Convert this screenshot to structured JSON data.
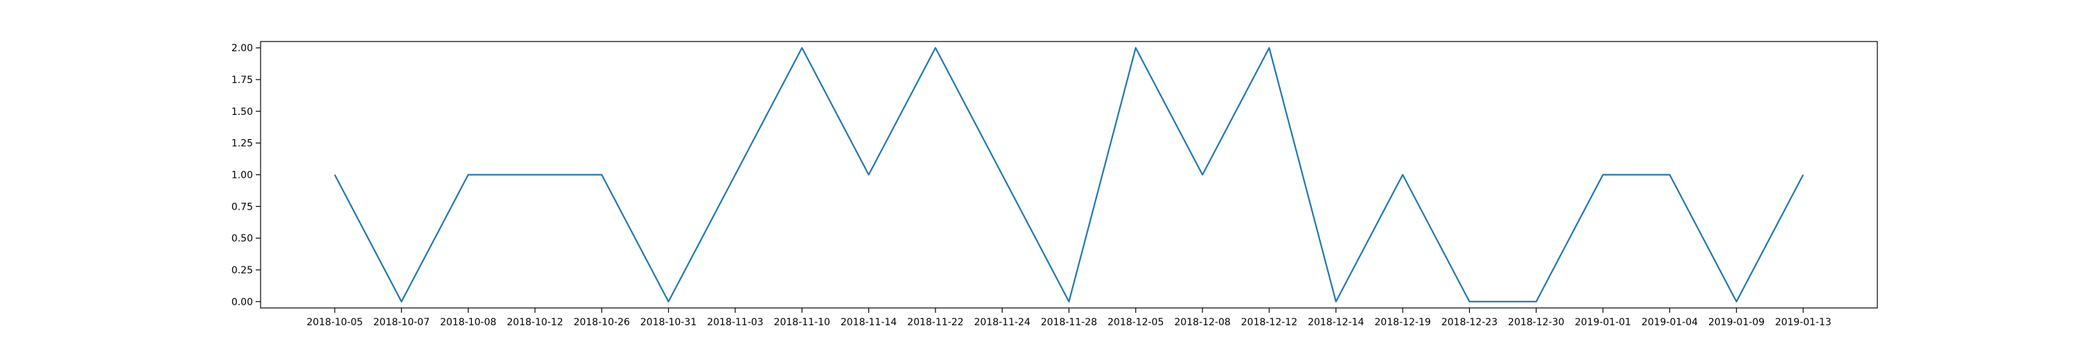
{
  "chart_data": {
    "type": "line",
    "categories": [
      "2018-10-05",
      "2018-10-07",
      "2018-10-08",
      "2018-10-12",
      "2018-10-26",
      "2018-10-31",
      "2018-11-03",
      "2018-11-10",
      "2018-11-14",
      "2018-11-22",
      "2018-11-24",
      "2018-11-28",
      "2018-12-05",
      "2018-12-08",
      "2018-12-12",
      "2018-12-14",
      "2018-12-19",
      "2018-12-23",
      "2018-12-30",
      "2019-01-01",
      "2019-01-04",
      "2019-01-09",
      "2019-01-13"
    ],
    "series": [
      {
        "values": [
          1,
          0,
          1,
          1,
          1,
          0,
          1,
          2,
          1,
          2,
          1,
          0,
          2,
          1,
          2,
          0,
          1,
          0,
          0,
          1,
          1,
          0,
          1
        ],
        "color": "#1f77b4"
      }
    ],
    "ylim": [
      -0.05,
      2.05
    ],
    "yticks": [
      0.0,
      0.25,
      0.5,
      0.75,
      1.0,
      1.25,
      1.5,
      1.75,
      2.0
    ],
    "ytick_labels": [
      "0.00",
      "0.25",
      "0.50",
      "0.75",
      "1.00",
      "1.25",
      "1.50",
      "1.75",
      "2.00"
    ],
    "grid": false,
    "legend": "none"
  }
}
